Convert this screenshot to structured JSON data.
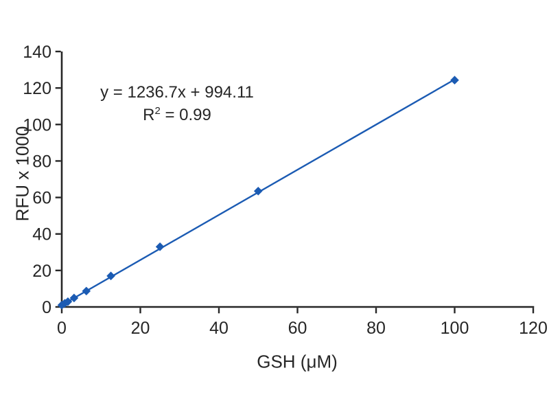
{
  "chart_data": {
    "type": "scatter",
    "title": "",
    "xlabel": "GSH (μM)",
    "ylabel": "RFU x 1000",
    "xlim": [
      0,
      120
    ],
    "ylim": [
      0,
      140
    ],
    "x_ticks": [
      0,
      20,
      40,
      60,
      80,
      100,
      120
    ],
    "y_ticks": [
      0,
      20,
      40,
      60,
      80,
      100,
      120,
      140
    ],
    "grid": false,
    "legend": null,
    "points": {
      "x": [
        0,
        0.78,
        1.56,
        3.125,
        6.25,
        12.5,
        25,
        50,
        100
      ],
      "y": [
        1.0,
        2.0,
        2.9,
        4.9,
        8.7,
        17.0,
        33.0,
        63.5,
        124.3
      ]
    },
    "trendline": {
      "slope": 1236.7,
      "intercept": 994.11,
      "y_divisor": 1000,
      "x_start": 0,
      "x_end": 100
    },
    "annotation": {
      "equation": "y = 1236.7x + 994.11",
      "r_base": "R",
      "r_sup": "2",
      "r_rest": " = 0.99"
    },
    "colors": {
      "series": "#1b5bb3",
      "axis": "#262626",
      "text": "#262626",
      "background": "#ffffff"
    }
  }
}
